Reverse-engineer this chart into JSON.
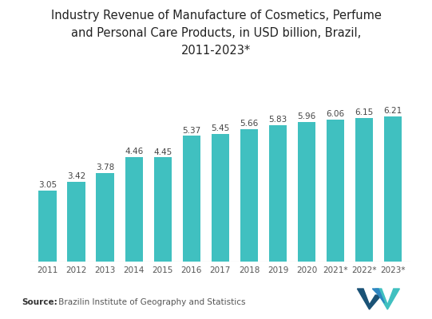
{
  "title": "Industry Revenue of Manufacture of Cosmetics, Perfume\nand Personal Care Products, in USD billion, Brazil,\n2011-2023*",
  "categories": [
    "2011",
    "2012",
    "2013",
    "2014",
    "2015",
    "2016",
    "2017",
    "2018",
    "2019",
    "2020",
    "2021*",
    "2022*",
    "2023*"
  ],
  "values": [
    3.05,
    3.42,
    3.78,
    4.46,
    4.45,
    5.37,
    5.45,
    5.66,
    5.83,
    5.96,
    6.06,
    6.15,
    6.21
  ],
  "bar_color": "#40c0c0",
  "background_color": "#ffffff",
  "title_fontsize": 10.5,
  "label_fontsize": 7.5,
  "tick_fontsize": 7.5,
  "source_label": "Source:",
  "source_text": " Brazilin Institute of Geography and Statistics",
  "ylim": [
    0,
    7.5
  ]
}
